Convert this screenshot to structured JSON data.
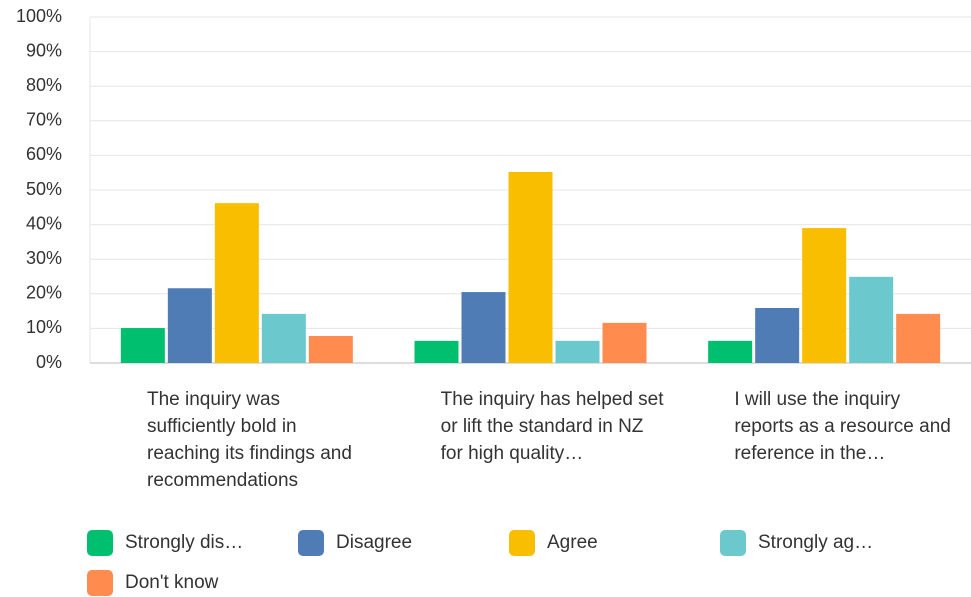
{
  "chart_data": {
    "type": "bar",
    "categories": [
      "The inquiry was sufficiently bold in reaching its findings and recommendations",
      "The inquiry has helped set or lift the standard in NZ for high quality…",
      "I will use the inquiry reports as a resource and reference in the…"
    ],
    "series": [
      {
        "name": "Strongly dis…",
        "color": "#00bf6f",
        "values": [
          10.1,
          6.4,
          6.4
        ]
      },
      {
        "name": "Disagree",
        "color": "#507cb6",
        "values": [
          21.6,
          20.5,
          15.9
        ]
      },
      {
        "name": "Agree",
        "color": "#f9be00",
        "values": [
          46.2,
          55.2,
          39.0
        ]
      },
      {
        "name": "Strongly ag…",
        "color": "#6bc8cd",
        "values": [
          14.2,
          6.4,
          24.9
        ]
      },
      {
        "name": "Don't know",
        "color": "#ff8b4f",
        "values": [
          7.8,
          11.6,
          14.2
        ]
      }
    ],
    "ylim": [
      0,
      100
    ],
    "yticks": [
      {
        "value": 0,
        "label": "0%"
      },
      {
        "value": 10,
        "label": "10%"
      },
      {
        "value": 20,
        "label": "20%"
      },
      {
        "value": 30,
        "label": "30%"
      },
      {
        "value": 40,
        "label": "40%"
      },
      {
        "value": 50,
        "label": "50%"
      },
      {
        "value": 60,
        "label": "60%"
      },
      {
        "value": 70,
        "label": "70%"
      },
      {
        "value": 80,
        "label": "80%"
      },
      {
        "value": 90,
        "label": "90%"
      },
      {
        "value": 100,
        "label": "100%"
      }
    ],
    "grid": true
  }
}
